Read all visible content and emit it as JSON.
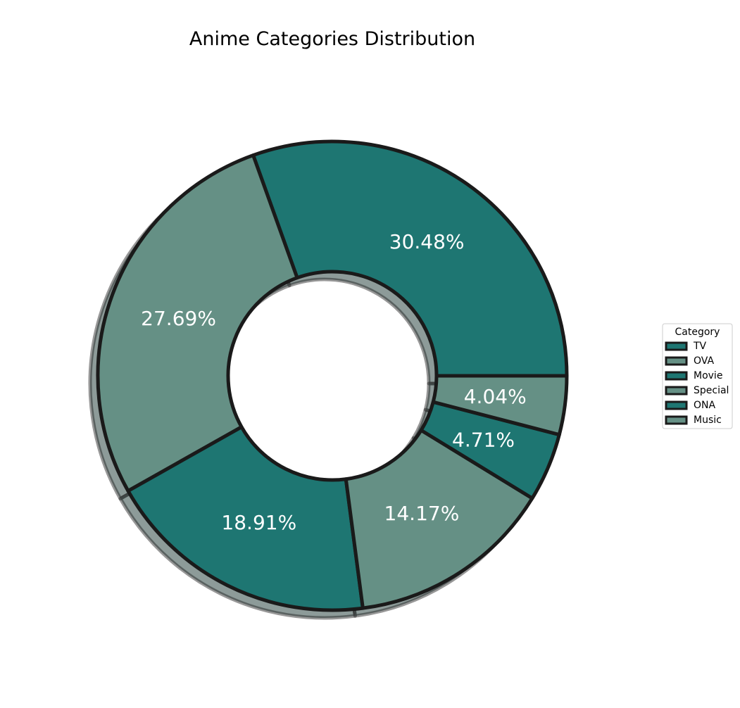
{
  "chart_data": {
    "type": "pie",
    "style": "donut",
    "title": "Anime Categories Distribution",
    "categories": [
      "TV",
      "OVA",
      "Movie",
      "Special",
      "ONA",
      "Music"
    ],
    "values": [
      30.48,
      27.69,
      18.91,
      14.17,
      4.71,
      4.04
    ],
    "value_labels": [
      "30.48%",
      "27.69%",
      "18.91%",
      "14.17%",
      "4.71%",
      "4.04%"
    ],
    "colors": [
      "#1e7672",
      "#659085",
      "#1e7672",
      "#659085",
      "#1e7672",
      "#659085"
    ],
    "edge_color": "#1a1a1a",
    "shadow": true,
    "start_angle_deg": 0,
    "direction": "counterclockwise",
    "legend": {
      "title": "Category",
      "placement": "center-right"
    }
  }
}
